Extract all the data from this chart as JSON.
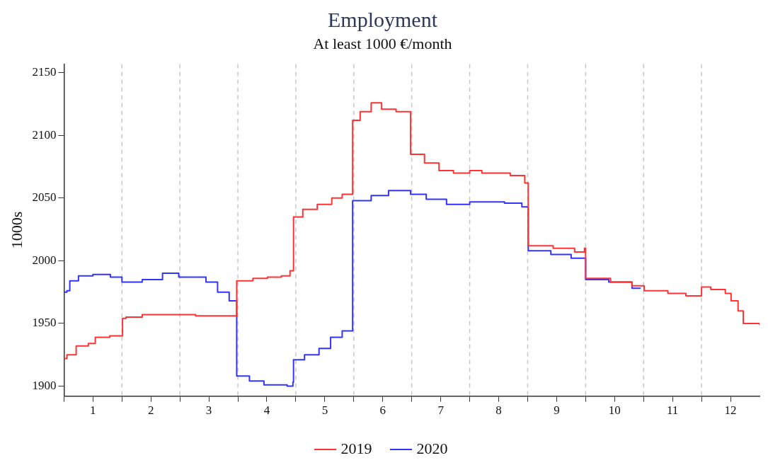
{
  "chart_data": {
    "type": "step",
    "title": "Employment",
    "subtitle": "At least 1000 €/month",
    "ylabel": "1000s",
    "xlim": [
      0,
      12
    ],
    "xticks": [
      {
        "value": 0,
        "label": null
      },
      {
        "value": 0.5,
        "label": "1"
      },
      {
        "value": 1,
        "label": null
      },
      {
        "value": 1.5,
        "label": "2"
      },
      {
        "value": 2,
        "label": null
      },
      {
        "value": 2.5,
        "label": "3"
      },
      {
        "value": 3,
        "label": null
      },
      {
        "value": 3.5,
        "label": "4"
      },
      {
        "value": 4,
        "label": null
      },
      {
        "value": 4.5,
        "label": "5"
      },
      {
        "value": 5,
        "label": null
      },
      {
        "value": 5.5,
        "label": "6"
      },
      {
        "value": 6,
        "label": null
      },
      {
        "value": 6.5,
        "label": "7"
      },
      {
        "value": 7,
        "label": null
      },
      {
        "value": 7.5,
        "label": "8"
      },
      {
        "value": 8,
        "label": null
      },
      {
        "value": 8.5,
        "label": "9"
      },
      {
        "value": 9,
        "label": null
      },
      {
        "value": 9.5,
        "label": "10"
      },
      {
        "value": 10,
        "label": null
      },
      {
        "value": 10.5,
        "label": "11"
      },
      {
        "value": 11,
        "label": null
      },
      {
        "value": 11.5,
        "label": "12"
      }
    ],
    "ylim": [
      1892,
      2157
    ],
    "yticks": [
      1900,
      1950,
      2000,
      2050,
      2100,
      2150
    ],
    "grid": false,
    "legend": "bottom",
    "marker": "none",
    "line_style": "solid",
    "ref_lines": [
      {
        "axis": "x",
        "value": 1,
        "color": "#c8c8c8",
        "line_style": "dashed"
      },
      {
        "axis": "x",
        "value": 2,
        "color": "#c8c8c8",
        "line_style": "dashed"
      },
      {
        "axis": "x",
        "value": 3,
        "color": "#c8c8c8",
        "line_style": "dashed"
      },
      {
        "axis": "x",
        "value": 4,
        "color": "#c8c8c8",
        "line_style": "dashed"
      },
      {
        "axis": "x",
        "value": 5,
        "color": "#c8c8c8",
        "line_style": "dashed"
      },
      {
        "axis": "x",
        "value": 6,
        "color": "#c8c8c8",
        "line_style": "dashed"
      },
      {
        "axis": "x",
        "value": 7,
        "color": "#c8c8c8",
        "line_style": "dashed"
      },
      {
        "axis": "x",
        "value": 8,
        "color": "#c8c8c8",
        "line_style": "dashed"
      },
      {
        "axis": "x",
        "value": 9,
        "color": "#c8c8c8",
        "line_style": "dashed"
      },
      {
        "axis": "x",
        "value": 10,
        "color": "#c8c8c8",
        "line_style": "dashed"
      },
      {
        "axis": "x",
        "value": 11,
        "color": "#c8c8c8",
        "line_style": "dashed"
      }
    ],
    "series": [
      {
        "name": "2019",
        "color": "#ff3333",
        "x": [
          0,
          0.05,
          0.21,
          0.42,
          0.54,
          0.79,
          1.01,
          1.07,
          1.35,
          1.98,
          2.27,
          2.64,
          2.98,
          3.26,
          3.51,
          3.75,
          3.9,
          3.96,
          4.12,
          4.37,
          4.62,
          4.8,
          4.98,
          5.11,
          5.3,
          5.48,
          5.73,
          5.98,
          6.22,
          6.47,
          6.72,
          7,
          7.21,
          7.7,
          7.95,
          8.01,
          8.44,
          8.81,
          8.98,
          9,
          9.43,
          9.8,
          10.01,
          10.42,
          10.73,
          11,
          11.16,
          11.41,
          11.51,
          11.63,
          11.72,
          12
        ],
        "values": [
          1922,
          1925,
          1932,
          1934,
          1939,
          1940,
          1954,
          1955,
          1957,
          1957,
          1956,
          1956,
          1984,
          1986,
          1987,
          1988,
          1992,
          2035,
          2041,
          2045,
          2050,
          2053,
          2112,
          2119,
          2126,
          2121,
          2119,
          2085,
          2078,
          2072,
          2070,
          2072,
          2070,
          2068,
          2062,
          2012,
          2010,
          2007,
          2010,
          1986,
          1983,
          1980,
          1976,
          1974,
          1972,
          1979,
          1977,
          1974,
          1968,
          1960,
          1950,
          1949
        ]
      },
      {
        "name": "2020",
        "color": "#3333ff",
        "x": [
          0,
          0.05,
          0.1,
          0.25,
          0.5,
          0.8,
          1,
          1.35,
          1.7,
          1.98,
          2.3,
          2.45,
          2.65,
          2.85,
          2.98,
          3.2,
          3.45,
          3.85,
          3.95,
          3.96,
          4.15,
          4.4,
          4.6,
          4.8,
          4.98,
          5.3,
          5.6,
          5.98,
          6.25,
          6.6,
          7,
          7.6,
          7.9,
          8.01,
          8.4,
          8.75,
          9,
          9.4,
          9.8,
          9.95
        ],
        "values": [
          1975,
          1976,
          1984,
          1988,
          1989,
          1987,
          1983,
          1985,
          1990,
          1987,
          1987,
          1983,
          1975,
          1968,
          1908,
          1904,
          1901,
          1900,
          1903,
          1921,
          1925,
          1930,
          1939,
          1944,
          2048,
          2052,
          2056,
          2053,
          2049,
          2045,
          2047,
          2046,
          2043,
          2008,
          2005,
          2002,
          1985,
          1983,
          1978,
          1978
        ]
      }
    ]
  }
}
